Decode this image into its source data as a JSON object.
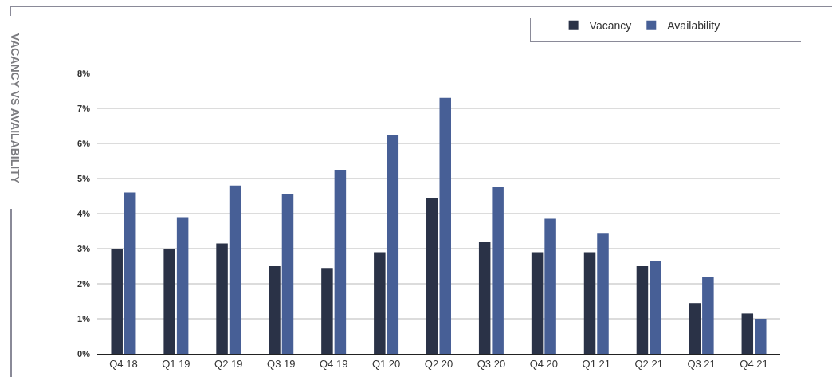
{
  "chart_data": {
    "type": "bar",
    "title": "VACANCY VS AVAILABILITY",
    "categories": [
      "Q4 18",
      "Q1 19",
      "Q2 19",
      "Q3 19",
      "Q4 19",
      "Q1 20",
      "Q2 20",
      "Q3 20",
      "Q4 20",
      "Q1 21",
      "Q2 21",
      "Q3 21",
      "Q4 21"
    ],
    "series": [
      {
        "name": "Vacancy",
        "color": "#2a3247",
        "values": [
          3.0,
          3.0,
          3.15,
          2.5,
          2.45,
          2.9,
          4.45,
          3.2,
          2.9,
          2.9,
          2.5,
          1.45,
          1.15
        ]
      },
      {
        "name": "Availability",
        "color": "#475f96",
        "values": [
          4.6,
          3.9,
          4.8,
          4.55,
          5.25,
          6.25,
          7.3,
          4.75,
          3.85,
          3.45,
          2.65,
          2.2,
          1.0
        ]
      }
    ],
    "ylim": [
      0,
      8
    ],
    "yticks": [
      {
        "value": 0,
        "label": "0%"
      },
      {
        "value": 1,
        "label": "1%"
      },
      {
        "value": 2,
        "label": "2%"
      },
      {
        "value": 3,
        "label": "3%"
      },
      {
        "value": 4,
        "label": "4%"
      },
      {
        "value": 5,
        "label": "5%"
      },
      {
        "value": 6,
        "label": "6%"
      },
      {
        "value": 7,
        "label": "7%"
      },
      {
        "value": 8,
        "label": "8%"
      }
    ],
    "grid": "y",
    "legend": "top right"
  }
}
